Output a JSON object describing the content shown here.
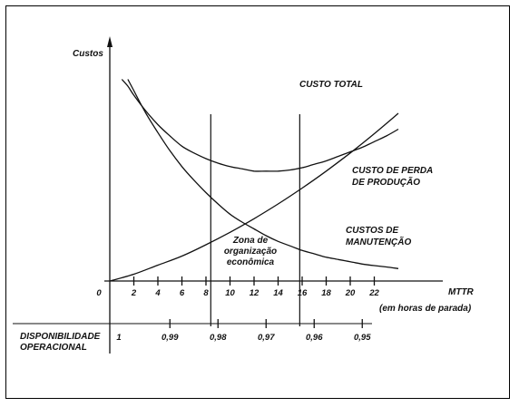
{
  "chart_data": {
    "type": "line",
    "ylabel": "Custos",
    "xlabel": "MTTR",
    "xlabel_sub": "(em horas de parada)",
    "x_ticks": [
      "0",
      "2",
      "4",
      "6",
      "8",
      "10",
      "12",
      "14",
      "16",
      "18",
      "20",
      "22"
    ],
    "availability": {
      "label_line1": "DISPONIBILIDADE",
      "label_line2": "OPERACIONAL",
      "ticks": [
        {
          "x": 1,
          "label": "1"
        },
        {
          "x": 5,
          "label": "0,99"
        },
        {
          "x": 9,
          "label": "0,98"
        },
        {
          "x": 13,
          "label": "0,97"
        },
        {
          "x": 17,
          "label": "0,96"
        },
        {
          "x": 21,
          "label": "0,95"
        }
      ]
    },
    "xlim": [
      0,
      24
    ],
    "ylim": [
      0,
      100
    ],
    "zone": {
      "bounds": [
        8.4,
        15.8
      ],
      "label_lines": [
        "Zona de",
        "organização",
        "econômica"
      ]
    },
    "series": [
      {
        "name": "CUSTO TOTAL",
        "x": [
          1.0,
          1.5,
          2,
          3,
          4,
          5,
          6,
          7,
          8,
          9,
          10,
          11,
          12,
          13,
          14,
          15,
          16,
          17,
          18,
          19,
          20,
          21,
          22,
          23,
          24
        ],
        "y": [
          89,
          86,
          82,
          75,
          69,
          64,
          59.5,
          56.5,
          54,
          52,
          50.5,
          49.5,
          48.5,
          48.5,
          48.5,
          49,
          50,
          51.5,
          53,
          55,
          57,
          59,
          61.5,
          64,
          67
        ]
      },
      {
        "name_lines": [
          "CUSTO DE PERDA",
          "DE PRODUÇÃO"
        ],
        "x": [
          0,
          2,
          4,
          6,
          8,
          10,
          12,
          14,
          16,
          18,
          20,
          22,
          24
        ],
        "y": [
          0,
          3,
          7,
          11,
          16,
          21.5,
          27.5,
          34,
          41,
          48.5,
          56.5,
          65,
          74
        ]
      },
      {
        "name_lines": [
          "CUSTOS DE",
          "MANUTENÇÃO"
        ],
        "x": [
          1.5,
          2,
          3,
          4,
          5,
          6,
          7,
          8,
          9,
          10,
          11,
          12,
          13,
          14,
          15,
          16,
          17,
          18,
          19,
          20,
          21,
          22,
          23,
          24
        ],
        "y": [
          89,
          84,
          74,
          65.5,
          57.5,
          50.5,
          44.5,
          39,
          34,
          29.5,
          26,
          23,
          20,
          17.5,
          15.5,
          13.5,
          12,
          10.5,
          9.5,
          8.5,
          7.5,
          6.8,
          6.2,
          5.5
        ]
      }
    ]
  }
}
